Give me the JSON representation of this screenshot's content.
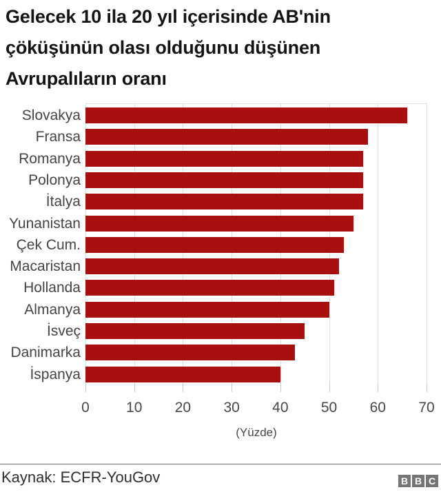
{
  "header": {
    "title_lines": [
      "Gelecek 10 ila 20 yıl içerisinde AB'nin",
      "çöküşünün olası olduğunu düşünen",
      "Avrupalıların oranı"
    ]
  },
  "chart_data": {
    "type": "bar",
    "orientation": "horizontal",
    "title": "Gelecek 10 ila 20 yıl içerisinde AB'nin çöküşünün olası olduğunu düşünen Avrupalıların oranı",
    "categories": [
      "Slovakya",
      "Fransa",
      "Romanya",
      "Polonya",
      "İtalya",
      "Yunanistan",
      "Çek Cum.",
      "Macaristan",
      "Hollanda",
      "Almanya",
      "İsveç",
      "Danimarka",
      "İspanya"
    ],
    "values": [
      66,
      58,
      57,
      57,
      57,
      55,
      53,
      52,
      51,
      50,
      45,
      43,
      40
    ],
    "xlabel": "(Yüzde)",
    "xlim": [
      0,
      70
    ],
    "xticks": [
      0,
      10,
      20,
      30,
      40,
      50,
      60,
      70
    ],
    "grid": true,
    "legend": "none",
    "bar_color": "#a81010"
  },
  "footer": {
    "source": "Kaynak: ECFR-YouGov",
    "logo_letters": [
      "B",
      "B",
      "C"
    ]
  }
}
